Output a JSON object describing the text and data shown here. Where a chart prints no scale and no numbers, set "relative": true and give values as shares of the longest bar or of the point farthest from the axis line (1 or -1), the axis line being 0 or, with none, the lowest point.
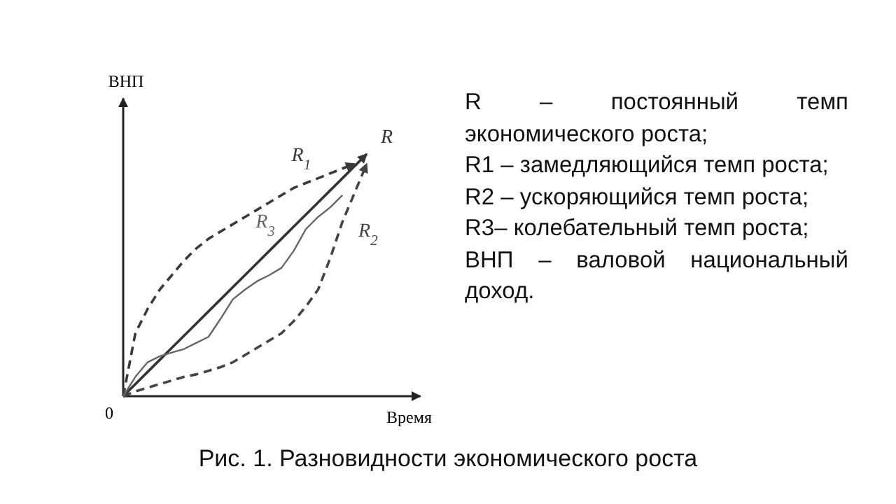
{
  "chart_data": {
    "type": "line",
    "relative": true,
    "title": "Рис. 1. Разновидности экономического роста",
    "xlabel": "Время",
    "ylabel": "ВНП",
    "marker": "none",
    "categories": [
      null,
      null,
      null,
      null,
      null,
      null,
      null,
      null,
      null,
      null,
      null,
      null,
      null,
      null,
      null,
      null,
      null,
      null,
      null,
      null,
      null
    ],
    "series": [
      {
        "name": "R",
        "color": "#333333",
        "line_style": "solid",
        "values": [
          0,
          0.05,
          0.1,
          0.15,
          0.2,
          0.25,
          0.3,
          0.35,
          0.4,
          0.45,
          0.5,
          0.55,
          0.6,
          0.65,
          0.7,
          0.75,
          0.8,
          0.85,
          0.9,
          0.95,
          1
        ]
      },
      {
        "name": "R$_{1}$",
        "color": "#3a3a3a",
        "line_style": "dashed",
        "values": [
          0,
          0.26,
          0.36,
          0.44,
          0.5,
          0.56,
          0.61,
          0.65,
          0.68,
          0.71,
          0.74,
          0.77,
          0.8,
          0.83,
          0.86,
          0.88,
          0.9,
          0.92,
          0.94,
          0.96,
          null
        ]
      },
      {
        "name": "R$_{2}$",
        "color": "#444444",
        "line_style": "dashed",
        "values": [
          0,
          0.02,
          0.035,
          0.05,
          0.065,
          0.08,
          0.09,
          0.105,
          0.12,
          0.14,
          0.17,
          0.2,
          0.23,
          0.26,
          0.31,
          0.37,
          0.44,
          0.57,
          0.72,
          0.84,
          0.96
        ]
      },
      {
        "name": "R$_{3}$",
        "color": "#666666",
        "line_style": "solid",
        "values": [
          0,
          0.08,
          0.14,
          0.165,
          0.18,
          0.195,
          0.22,
          0.245,
          0.32,
          0.4,
          0.44,
          0.475,
          0.5,
          0.53,
          0.6,
          0.69,
          0.74,
          0.78,
          0.83,
          null,
          null
        ]
      }
    ],
    "annotations": [
      "0",
      "R – постоянный темп экономического роста;",
      "R1 – замедляющийся темп роста;",
      "R2 – ускоряющийся темп роста;",
      "R3– колебательный темп роста;",
      "ВНП – валовой национальный доход."
    ]
  }
}
